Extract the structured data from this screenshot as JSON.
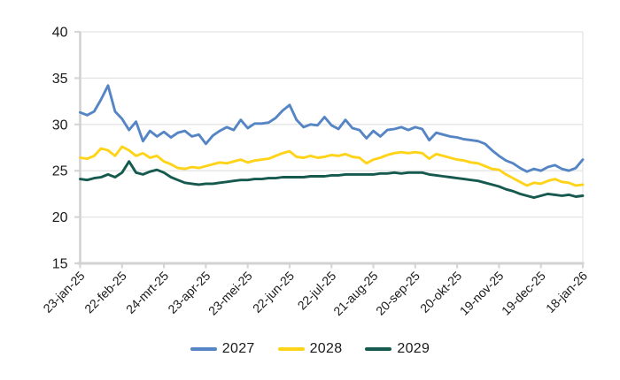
{
  "chart_data": {
    "type": "line",
    "title": "",
    "grid": "horizontal",
    "legend_position": "bottom",
    "x_axis": {
      "tick_labels": [
        "23-jan-25",
        "22-feb-25",
        "24-mrt-25",
        "23-apr-25",
        "23-mei-25",
        "22-jun-25",
        "22-jul-25",
        "21-aug-25",
        "20-sep-25",
        "20-okt-25",
        "19-nov-25",
        "19-dec-25",
        "18-jan-26"
      ],
      "tick_days": [
        0,
        30,
        60,
        90,
        120,
        150,
        180,
        210,
        240,
        270,
        300,
        330,
        360
      ],
      "total_days": 360
    },
    "y_axis": {
      "min": 15,
      "max": 40,
      "step": 5,
      "ticks": [
        40,
        35,
        30,
        25,
        20,
        15
      ]
    },
    "sample_step_days": 5,
    "series": [
      {
        "name": "2027",
        "color": "#5585C4",
        "values": [
          31.3,
          31.0,
          31.4,
          32.7,
          34.2,
          31.4,
          30.6,
          29.4,
          30.3,
          28.2,
          29.3,
          28.7,
          29.2,
          28.6,
          29.1,
          29.3,
          28.7,
          28.9,
          27.9,
          28.8,
          29.3,
          29.7,
          29.4,
          30.5,
          29.6,
          30.1,
          30.1,
          30.2,
          30.7,
          31.5,
          32.1,
          30.5,
          29.7,
          30.0,
          29.9,
          30.8,
          29.9,
          29.5,
          30.5,
          29.6,
          29.4,
          28.5,
          29.3,
          28.7,
          29.4,
          29.5,
          29.7,
          29.4,
          29.7,
          29.5,
          28.3,
          29.1,
          28.9,
          28.7,
          28.6,
          28.4,
          28.3,
          28.2,
          27.9,
          27.2,
          26.6,
          26.1,
          25.8,
          25.3,
          24.9,
          25.2,
          25.0,
          25.4,
          25.6,
          25.2,
          25.0,
          25.3,
          26.2
        ]
      },
      {
        "name": "2028",
        "color": "#FFD318",
        "values": [
          26.4,
          26.3,
          26.6,
          27.4,
          27.2,
          26.6,
          27.6,
          27.2,
          26.6,
          26.9,
          26.4,
          26.6,
          26.0,
          25.7,
          25.3,
          25.2,
          25.4,
          25.3,
          25.5,
          25.7,
          25.9,
          25.8,
          26.0,
          26.2,
          25.9,
          26.1,
          26.2,
          26.3,
          26.6,
          26.9,
          27.1,
          26.5,
          26.4,
          26.6,
          26.4,
          26.5,
          26.7,
          26.6,
          26.8,
          26.5,
          26.4,
          25.8,
          26.2,
          26.4,
          26.7,
          26.9,
          27.0,
          26.9,
          27.0,
          26.9,
          26.3,
          26.8,
          26.6,
          26.4,
          26.2,
          26.1,
          25.9,
          25.8,
          25.5,
          25.2,
          25.1,
          24.6,
          24.2,
          23.8,
          23.4,
          23.7,
          23.6,
          23.9,
          24.1,
          23.8,
          23.7,
          23.4,
          23.5
        ]
      },
      {
        "name": "2029",
        "color": "#16594E",
        "values": [
          24.1,
          24.0,
          24.2,
          24.3,
          24.6,
          24.3,
          24.8,
          26.0,
          24.8,
          24.6,
          24.9,
          25.1,
          24.8,
          24.3,
          24.0,
          23.7,
          23.6,
          23.5,
          23.6,
          23.6,
          23.7,
          23.8,
          23.9,
          24.0,
          24.0,
          24.1,
          24.1,
          24.2,
          24.2,
          24.3,
          24.3,
          24.3,
          24.3,
          24.4,
          24.4,
          24.4,
          24.5,
          24.5,
          24.6,
          24.6,
          24.6,
          24.6,
          24.6,
          24.7,
          24.7,
          24.8,
          24.7,
          24.8,
          24.8,
          24.8,
          24.6,
          24.5,
          24.4,
          24.3,
          24.2,
          24.1,
          24.0,
          23.9,
          23.7,
          23.5,
          23.3,
          23.0,
          22.8,
          22.5,
          22.3,
          22.1,
          22.3,
          22.5,
          22.4,
          22.3,
          22.4,
          22.2,
          22.3
        ]
      }
    ]
  },
  "colors": {
    "background": "#FFFFFF",
    "axis_line": "#D2D2D2",
    "gridline": "#E4E4E4",
    "tick_mark": "#D6D6D6",
    "text": "#1A1A1A"
  }
}
